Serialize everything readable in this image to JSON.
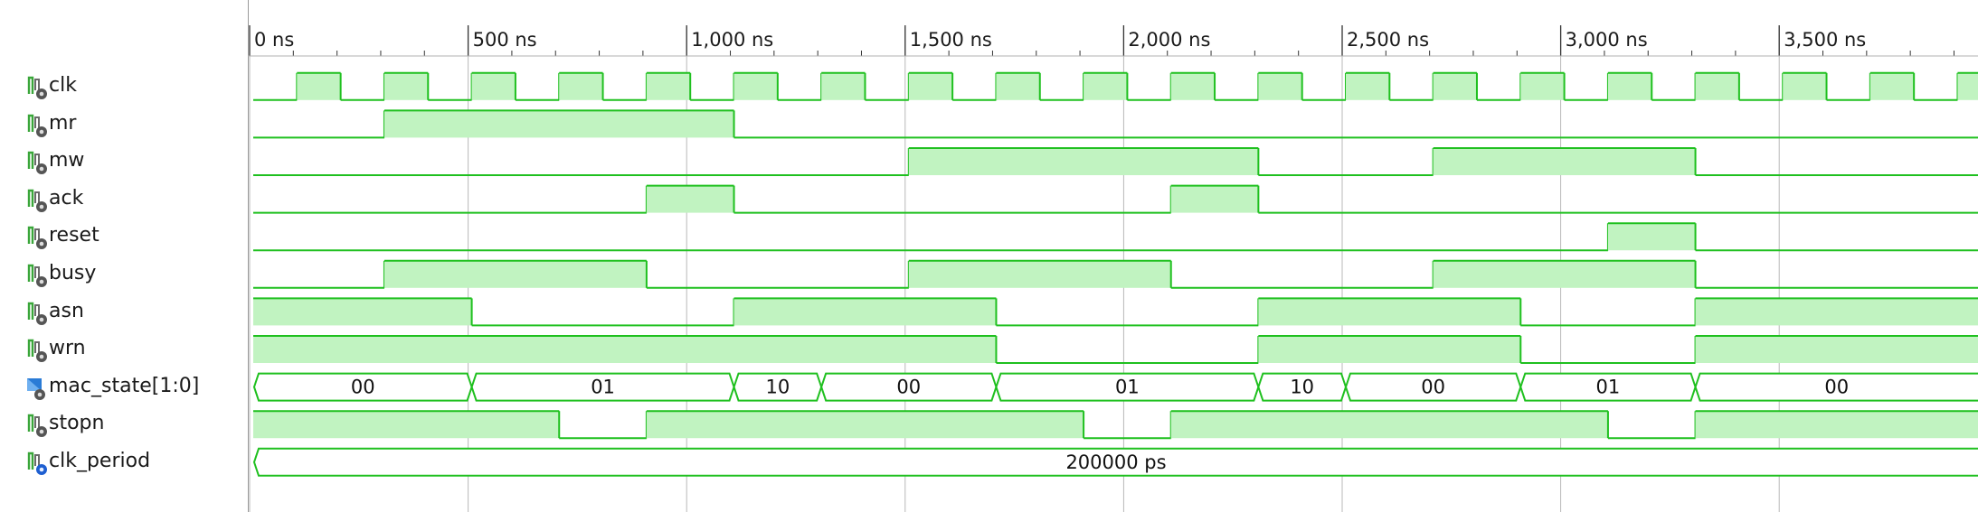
{
  "time_axis": {
    "labels": [
      "0 ns",
      "500 ns",
      "1,000 ns",
      "1,500 ns",
      "2,000 ns",
      "2,500 ns",
      "3,000 ns",
      "3,500 ns"
    ],
    "visible_range_ns": [
      0,
      3950
    ]
  },
  "colors": {
    "wave_line": "#1fc01f",
    "wave_fill": "#c1f3c1",
    "grid": "#b8b8b8",
    "divider": "#9a9a9a",
    "text": "#1a1a1a",
    "background": "#ffffff"
  },
  "signals": [
    {
      "name": "clk",
      "kind": "bit",
      "icon": "signal-bit-icon",
      "edges": [
        [
          0,
          0
        ],
        [
          100,
          1
        ],
        [
          200,
          0
        ],
        [
          300,
          1
        ],
        [
          400,
          0
        ],
        [
          500,
          1
        ],
        [
          600,
          0
        ],
        [
          700,
          1
        ],
        [
          800,
          0
        ],
        [
          900,
          1
        ],
        [
          1000,
          0
        ],
        [
          1100,
          1
        ],
        [
          1200,
          0
        ],
        [
          1300,
          1
        ],
        [
          1400,
          0
        ],
        [
          1500,
          1
        ],
        [
          1600,
          0
        ],
        [
          1700,
          1
        ],
        [
          1800,
          0
        ],
        [
          1900,
          1
        ],
        [
          2000,
          0
        ],
        [
          2100,
          1
        ],
        [
          2200,
          0
        ],
        [
          2300,
          1
        ],
        [
          2400,
          0
        ],
        [
          2500,
          1
        ],
        [
          2600,
          0
        ],
        [
          2700,
          1
        ],
        [
          2800,
          0
        ],
        [
          2900,
          1
        ],
        [
          3000,
          0
        ],
        [
          3100,
          1
        ],
        [
          3200,
          0
        ],
        [
          3300,
          1
        ],
        [
          3400,
          0
        ],
        [
          3500,
          1
        ],
        [
          3600,
          0
        ],
        [
          3700,
          1
        ],
        [
          3800,
          0
        ],
        [
          3900,
          1
        ]
      ]
    },
    {
      "name": "mr",
      "kind": "bit",
      "icon": "signal-bit-icon",
      "edges": [
        [
          0,
          0
        ],
        [
          300,
          1
        ],
        [
          1100,
          0
        ]
      ]
    },
    {
      "name": "mw",
      "kind": "bit",
      "icon": "signal-bit-icon",
      "edges": [
        [
          0,
          0
        ],
        [
          1500,
          1
        ],
        [
          2300,
          0
        ],
        [
          2700,
          1
        ],
        [
          3300,
          0
        ]
      ]
    },
    {
      "name": "ack",
      "kind": "bit",
      "icon": "signal-bit-icon",
      "edges": [
        [
          0,
          0
        ],
        [
          900,
          1
        ],
        [
          1100,
          0
        ],
        [
          2100,
          1
        ],
        [
          2300,
          0
        ]
      ]
    },
    {
      "name": "reset",
      "kind": "bit",
      "icon": "signal-bit-icon",
      "edges": [
        [
          0,
          0
        ],
        [
          3100,
          1
        ],
        [
          3300,
          0
        ]
      ]
    },
    {
      "name": "busy",
      "kind": "bit",
      "icon": "signal-bit-icon",
      "edges": [
        [
          0,
          0
        ],
        [
          300,
          1
        ],
        [
          900,
          0
        ],
        [
          1500,
          1
        ],
        [
          2100,
          0
        ],
        [
          2700,
          1
        ],
        [
          3300,
          0
        ]
      ]
    },
    {
      "name": "asn",
      "kind": "bit",
      "icon": "signal-bit-icon",
      "edges": [
        [
          0,
          1
        ],
        [
          500,
          0
        ],
        [
          1100,
          1
        ],
        [
          1700,
          0
        ],
        [
          2300,
          1
        ],
        [
          2900,
          0
        ],
        [
          3300,
          1
        ]
      ]
    },
    {
      "name": "wrn",
      "kind": "bit",
      "icon": "signal-bit-icon",
      "edges": [
        [
          0,
          1
        ],
        [
          1700,
          0
        ],
        [
          2300,
          1
        ],
        [
          2900,
          0
        ],
        [
          3300,
          1
        ]
      ]
    },
    {
      "name": "mac_state[1:0]",
      "kind": "bus",
      "icon": "signal-bus-icon",
      "segments": [
        {
          "start": 0,
          "end": 500,
          "label": "00"
        },
        {
          "start": 500,
          "end": 1100,
          "label": "01"
        },
        {
          "start": 1100,
          "end": 1300,
          "label": "10"
        },
        {
          "start": 1300,
          "end": 1700,
          "label": "00"
        },
        {
          "start": 1700,
          "end": 2300,
          "label": "01"
        },
        {
          "start": 2300,
          "end": 2500,
          "label": "10"
        },
        {
          "start": 2500,
          "end": 2900,
          "label": "00"
        },
        {
          "start": 2900,
          "end": 3300,
          "label": "01"
        },
        {
          "start": 3300,
          "end": 3950,
          "label": "00"
        }
      ]
    },
    {
      "name": "stopn",
      "kind": "bit",
      "icon": "signal-bit-icon",
      "edges": [
        [
          0,
          1
        ],
        [
          700,
          0
        ],
        [
          900,
          1
        ],
        [
          1900,
          0
        ],
        [
          2100,
          1
        ],
        [
          3100,
          0
        ],
        [
          3300,
          1
        ]
      ]
    },
    {
      "name": "clk_period",
      "kind": "bus",
      "icon": "signal-constant-icon",
      "segments": [
        {
          "start": 0,
          "end": 3950,
          "label": "200000 ps"
        }
      ]
    }
  ]
}
